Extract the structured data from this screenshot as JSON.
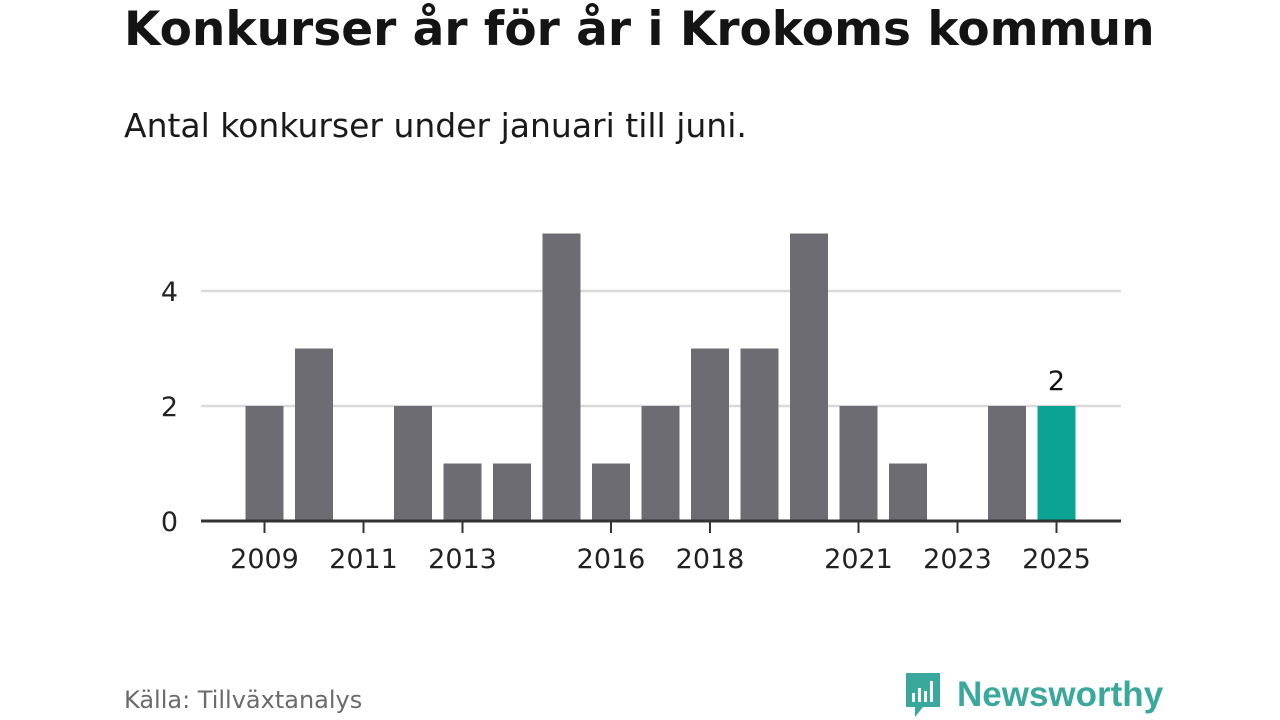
{
  "header": {
    "title": "Konkurser år för år i Krokoms kommun",
    "subtitle": "Antal konkurser under januari till juni."
  },
  "footer": {
    "source": "Källa: Tillväxtanalys",
    "brand": "Newsworthy",
    "brand_icon": "newsworthy-logo-icon"
  },
  "colors": {
    "bar": "#6d6c72",
    "highlight": "#0aa394",
    "grid": "#d9d9d9",
    "axis": "#333333",
    "brand": "#3aa89c"
  },
  "chart_data": {
    "type": "bar",
    "categories": [
      "2009",
      "2010",
      "2011",
      "2012",
      "2013",
      "2014",
      "2015",
      "2016",
      "2017",
      "2018",
      "2019",
      "2020",
      "2021",
      "2022",
      "2023",
      "2024",
      "2025"
    ],
    "values": [
      2,
      3,
      0,
      2,
      1,
      1,
      5,
      1,
      2,
      3,
      3,
      5,
      2,
      1,
      0,
      2,
      2
    ],
    "x_tick_labels": [
      "2009",
      "2011",
      "2013",
      "2016",
      "2018",
      "2021",
      "2023",
      "2025"
    ],
    "y_ticks": [
      0,
      2,
      4
    ],
    "ylim": [
      0,
      5
    ],
    "highlight": {
      "category": "2025",
      "label": "2"
    },
    "grid": true
  }
}
